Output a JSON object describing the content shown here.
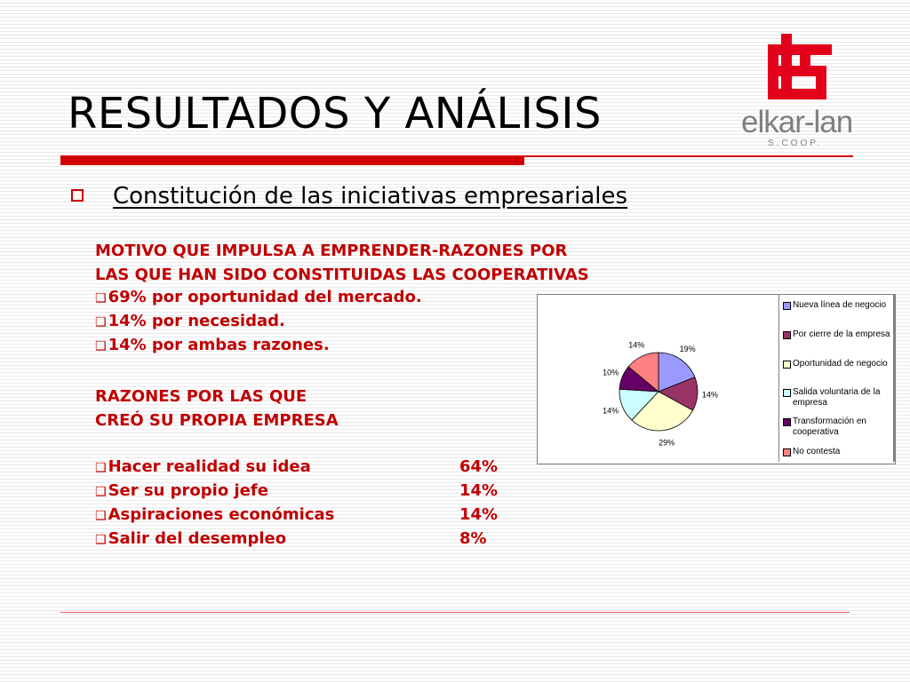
{
  "slide": {
    "title": "RESULTADOS Y ANÁLISIS",
    "subtitle": "Constitución de las iniciativas empresariales",
    "logo": {
      "name": "elkar-lan",
      "sub": "S.COOP.",
      "color": "#e3001b"
    }
  },
  "section1": {
    "heading_line1": "MOTIVO QUE IMPULSA A EMPRENDER-RAZONES POR",
    "heading_line2": "LAS QUE HAN SIDO CONSTITUIDAS LAS COOPERATIVAS",
    "items": [
      "69% por oportunidad del mercado.",
      "14% por necesidad.",
      "14% por ambas razones."
    ]
  },
  "section2": {
    "heading_line1": "RAZONES POR LAS QUE",
    "heading_line2": "CREÓ SU PROPIA EMPRESA",
    "items": [
      {
        "label": "Hacer realidad su idea",
        "value": "64%"
      },
      {
        "label": "Ser su propio jefe",
        "value": "14%"
      },
      {
        "label": "Aspiraciones económicas",
        "value": "14%"
      },
      {
        "label": "Salir del desempleo",
        "value": "8%"
      }
    ]
  },
  "chart_data": {
    "type": "pie",
    "categories": [
      "Nueva línea de negocio",
      "Por cierre de la empresa",
      "Oportunidad de negocio",
      "Salida voluntaria de la empresa",
      "Transformación en cooperativa",
      "No contesta"
    ],
    "values": [
      19,
      14,
      29,
      14,
      10,
      14
    ],
    "data_labels": [
      "19%",
      "14%",
      "29%",
      "14%",
      "10%",
      "14%"
    ],
    "colors": [
      "#9999ff",
      "#993366",
      "#ffffcc",
      "#ccffff",
      "#660066",
      "#ff8080"
    ],
    "legend_position": "right"
  }
}
